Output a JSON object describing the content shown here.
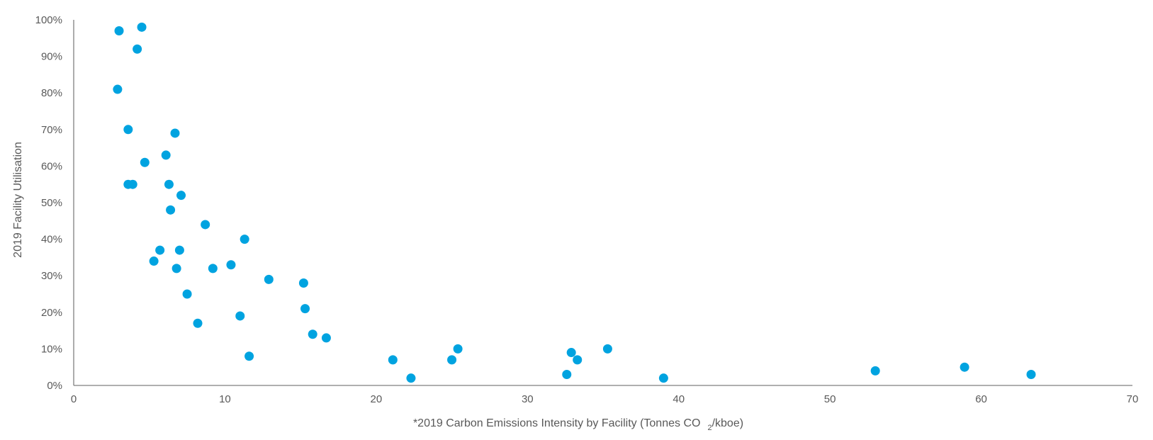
{
  "chart_data": {
    "type": "scatter",
    "title": "",
    "xlabel": "*2019 Carbon Emissions Intensity by Facility (Tonnes CO",
    "xlabel_subscript": "2",
    "xlabel_suffix": "/kboe)",
    "ylabel": "2019 Facility Utilisation",
    "xlim": [
      0,
      70
    ],
    "ylim": [
      0,
      100
    ],
    "x_ticks": [
      0,
      10,
      20,
      30,
      40,
      50,
      60,
      70
    ],
    "y_ticks": [
      0,
      10,
      20,
      30,
      40,
      50,
      60,
      70,
      80,
      90,
      100
    ],
    "y_tick_suffix": "%",
    "grid": false,
    "marker_color": "#00A3E0",
    "points": [
      {
        "x": 3.0,
        "y": 97
      },
      {
        "x": 4.5,
        "y": 98
      },
      {
        "x": 4.2,
        "y": 92
      },
      {
        "x": 2.9,
        "y": 81
      },
      {
        "x": 3.6,
        "y": 70
      },
      {
        "x": 6.7,
        "y": 69
      },
      {
        "x": 6.1,
        "y": 63
      },
      {
        "x": 4.7,
        "y": 61
      },
      {
        "x": 3.6,
        "y": 55
      },
      {
        "x": 3.9,
        "y": 55
      },
      {
        "x": 6.3,
        "y": 55
      },
      {
        "x": 7.1,
        "y": 52
      },
      {
        "x": 6.4,
        "y": 48
      },
      {
        "x": 8.7,
        "y": 44
      },
      {
        "x": 11.3,
        "y": 40
      },
      {
        "x": 5.7,
        "y": 37
      },
      {
        "x": 7.0,
        "y": 37
      },
      {
        "x": 5.3,
        "y": 34
      },
      {
        "x": 6.8,
        "y": 32
      },
      {
        "x": 9.2,
        "y": 32
      },
      {
        "x": 10.4,
        "y": 33
      },
      {
        "x": 12.9,
        "y": 29
      },
      {
        "x": 15.2,
        "y": 28
      },
      {
        "x": 7.5,
        "y": 25
      },
      {
        "x": 15.3,
        "y": 21
      },
      {
        "x": 11.0,
        "y": 19
      },
      {
        "x": 8.2,
        "y": 17
      },
      {
        "x": 15.8,
        "y": 14
      },
      {
        "x": 16.7,
        "y": 13
      },
      {
        "x": 11.6,
        "y": 8
      },
      {
        "x": 21.1,
        "y": 7
      },
      {
        "x": 22.3,
        "y": 2
      },
      {
        "x": 25.0,
        "y": 7
      },
      {
        "x": 25.4,
        "y": 10
      },
      {
        "x": 32.6,
        "y": 3
      },
      {
        "x": 32.9,
        "y": 9
      },
      {
        "x": 33.3,
        "y": 7
      },
      {
        "x": 35.3,
        "y": 10
      },
      {
        "x": 39.0,
        "y": 2
      },
      {
        "x": 53.0,
        "y": 4
      },
      {
        "x": 58.9,
        "y": 5
      },
      {
        "x": 63.3,
        "y": 3
      }
    ]
  }
}
